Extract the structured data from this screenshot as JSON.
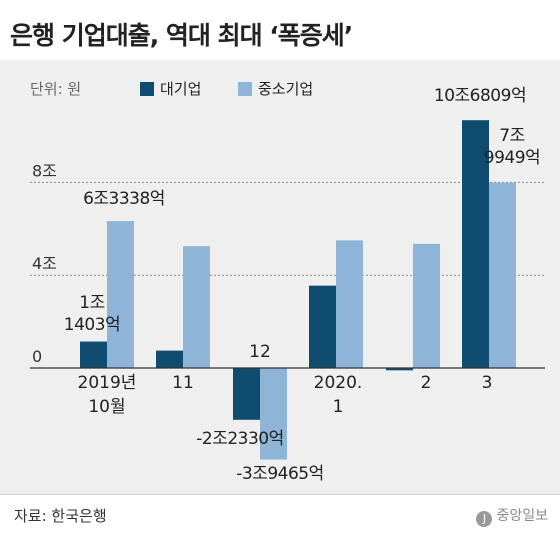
{
  "header": {
    "title": "은행 기업대출, 역대 최대 ‘폭증세’"
  },
  "legend": {
    "unit": "단위: 원",
    "items": [
      {
        "label": "대기업",
        "color": "#0f4c6f"
      },
      {
        "label": "중소기업",
        "color": "#8eb4d8"
      }
    ]
  },
  "chart_data": {
    "type": "bar",
    "categories": [
      "2019년\n10월",
      "11",
      "12",
      "2020.\n1",
      "2",
      "3"
    ],
    "series": [
      {
        "name": "대기업",
        "values": [
          1.1403,
          0.75,
          -2.233,
          3.55,
          -0.1,
          10.6809
        ]
      },
      {
        "name": "중소기업",
        "values": [
          6.3338,
          5.25,
          -3.9465,
          5.5,
          5.35,
          7.9949
        ]
      }
    ],
    "yticks": [
      {
        "value": 0,
        "label": "0"
      },
      {
        "value": 4,
        "label": "4조"
      },
      {
        "value": 8,
        "label": "8조"
      }
    ],
    "ylim": [
      -4.6,
      11.2
    ],
    "grid": true,
    "data_labels": [
      {
        "series": 0,
        "index": 0,
        "lines": [
          "1조",
          "1403억"
        ]
      },
      {
        "series": 1,
        "index": 0,
        "lines": [
          "6조3338억"
        ]
      },
      {
        "series": 0,
        "index": 2,
        "lines": [
          "-2조2330억"
        ]
      },
      {
        "series": 1,
        "index": 2,
        "lines": [
          "-3조9465억"
        ]
      },
      {
        "series": 0,
        "index": 5,
        "lines": [
          "10조6809억"
        ]
      },
      {
        "series": 1,
        "index": 5,
        "lines": [
          "7조",
          "9949억"
        ]
      }
    ]
  },
  "footer": {
    "source": "자료: 한국은행",
    "brand": "중앙일보",
    "brand_mark": "J"
  }
}
